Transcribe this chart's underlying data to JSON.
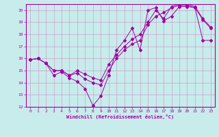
{
  "xlabel": "Windchill (Refroidissement éolien,°C)",
  "bg_color": "#c8ecec",
  "grid_color": "#c8a0c8",
  "line_color": "#a000a0",
  "xlim": [
    -0.5,
    23.5
  ],
  "ylim": [
    12,
    20.5
  ],
  "xticks": [
    0,
    1,
    2,
    3,
    4,
    5,
    6,
    7,
    8,
    9,
    10,
    11,
    12,
    13,
    14,
    15,
    16,
    17,
    18,
    19,
    20,
    21,
    22,
    23
  ],
  "yticks": [
    12,
    13,
    14,
    15,
    16,
    17,
    18,
    19,
    20
  ],
  "curve1_x": [
    0,
    1,
    2,
    3,
    4,
    5,
    6,
    7,
    8,
    9,
    10,
    11,
    12,
    13,
    14,
    15,
    16,
    17,
    18,
    19,
    20,
    21,
    22,
    23
  ],
  "curve1_y": [
    15.9,
    16.0,
    15.6,
    14.6,
    14.9,
    14.4,
    14.1,
    13.5,
    12.1,
    12.9,
    14.6,
    16.7,
    17.5,
    18.5,
    16.7,
    20.0,
    20.2,
    19.1,
    19.5,
    20.3,
    20.3,
    20.2,
    19.2,
    18.5
  ],
  "curve2_x": [
    0,
    1,
    2,
    3,
    4,
    5,
    6,
    7,
    8,
    9,
    10,
    11,
    12,
    13,
    14,
    15,
    16,
    17,
    18,
    19,
    20,
    21,
    22,
    23
  ],
  "curve2_y": [
    15.9,
    16.0,
    15.6,
    15.0,
    15.0,
    14.6,
    14.8,
    14.3,
    14.0,
    13.8,
    15.0,
    16.0,
    16.7,
    17.2,
    17.5,
    18.8,
    19.5,
    19.8,
    20.2,
    20.4,
    20.4,
    20.2,
    17.5,
    17.5
  ],
  "curve3_x": [
    0,
    1,
    2,
    3,
    4,
    5,
    6,
    7,
    8,
    9,
    10,
    11,
    12,
    13,
    14,
    15,
    16,
    17,
    18,
    19,
    20,
    21,
    22,
    23
  ],
  "curve3_y": [
    15.9,
    16.0,
    15.6,
    15.0,
    15.0,
    14.6,
    15.0,
    14.7,
    14.4,
    14.2,
    15.5,
    16.3,
    17.0,
    17.6,
    18.0,
    19.0,
    20.0,
    19.3,
    20.3,
    20.5,
    20.5,
    20.3,
    19.3,
    18.6
  ]
}
